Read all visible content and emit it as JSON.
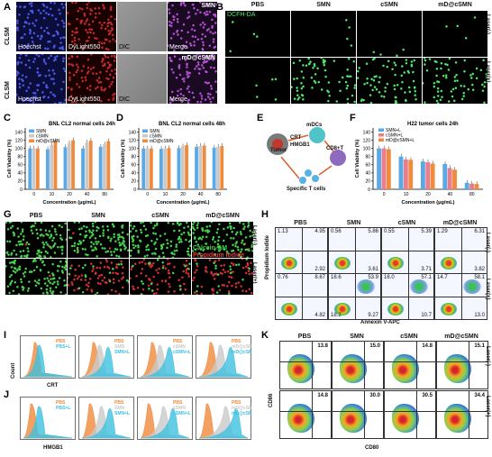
{
  "panels": {
    "A": {
      "label": "A",
      "row_labels": [
        "CLSM",
        "CLSM"
      ],
      "channels": [
        "Hoechst",
        "DyLight550",
        "DIC"
      ],
      "merge_labels": [
        "SMN",
        "mD@cSMN"
      ],
      "merge_caption": "Merge"
    },
    "B": {
      "label": "B",
      "columns": [
        "PBS",
        "SMN",
        "cSMN",
        "mD@cSMN"
      ],
      "stain": "DCFH-DA",
      "laser_rows": [
        "Laser(-)",
        "Laser(+)"
      ]
    },
    "C": {
      "label": "C",
      "title": "BNL CL2 normal cells 24h"
    },
    "D": {
      "label": "D",
      "title": "BNL CL2 normal cells 48h"
    },
    "E": {
      "label": "E",
      "labels": [
        "CRT",
        "HMGB1",
        "Tumor",
        "mDCs",
        "CD8+T",
        "Specific T cells"
      ]
    },
    "F": {
      "label": "F",
      "title": "H22 tumor cells 24h"
    },
    "G": {
      "label": "G",
      "columns": [
        "PBS",
        "SMN",
        "cSMN",
        "mD@cSMN"
      ],
      "laser_rows": [
        "Laser(-)",
        "Laser(+)"
      ],
      "legend": [
        "Calcein-AM",
        "Propidium Iodide"
      ]
    },
    "H": {
      "label": "H",
      "columns": [
        "PBS",
        "SMN",
        "cSMN",
        "mD@cSMN"
      ],
      "laser_rows": [
        "Laser(-)",
        "Laser(+)"
      ],
      "ylabel": "Propidium Iodide",
      "xlabel": "Annexin V-APC",
      "quadrants": [
        [
          {
            "tl": "1.13",
            "tr": "4.95",
            "bl": "",
            "br": "2.92"
          },
          {
            "tl": "0.56",
            "tr": "5.86",
            "bl": "",
            "br": "3.61"
          },
          {
            "tl": "0.55",
            "tr": "5.39",
            "bl": "",
            "br": "3.71"
          },
          {
            "tl": "1.29",
            "tr": "6.31",
            "bl": "",
            "br": "3.82"
          }
        ],
        [
          {
            "tl": "0.76",
            "tr": "8.67",
            "bl": "",
            "br": "4.82"
          },
          {
            "tl": "18.6",
            "tr": "53.9",
            "bl": "18.2",
            "br": "9.27"
          },
          {
            "tl": "16.0",
            "tr": "57.1",
            "bl": "",
            "br": "10.7"
          },
          {
            "tl": "14.7",
            "tr": "58.1",
            "bl": "",
            "br": "13.0"
          }
        ]
      ]
    },
    "I": {
      "label": "I",
      "ylabel": "Count",
      "xlabel": "CRT",
      "legends": [
        [
          "PBS",
          "PBS+L"
        ],
        [
          "PBS",
          "SMN",
          "SMN+L"
        ],
        [
          "PBS",
          "cSMN",
          "cSMN+L"
        ],
        [
          "PBS",
          "mD@cSMN",
          "mD@cSMN+L"
        ]
      ]
    },
    "J": {
      "label": "J",
      "xlabel": "HMGB1",
      "legends": [
        [
          "PBS",
          "PBS+L"
        ],
        [
          "PBS",
          "SMN",
          "SMN+L"
        ],
        [
          "PBS",
          "cSMN",
          "cSMN+L"
        ],
        [
          "PBS",
          "mD@cSMN",
          "mD@cSMN+L"
        ]
      ]
    },
    "K": {
      "label": "K",
      "columns": [
        "PBS",
        "SMN",
        "cSMN",
        "mD@cSMN"
      ],
      "laser_rows": [
        "Laser(-)",
        "Laser(+)"
      ],
      "ylabel": "CD86",
      "xlabel": "CD80",
      "values": [
        [
          "13.8",
          "15.0",
          "14.8",
          "15.1"
        ],
        [
          "14.8",
          "30.0",
          "30.5",
          "34.4"
        ]
      ]
    }
  },
  "chart_data": [
    {
      "type": "bar",
      "id": "C",
      "title": "BNL CL2 normal cells 24h",
      "xlabel": "Concentration (μg/mL)",
      "ylabel": "Cell Viability (%)",
      "ylim": [
        0,
        150
      ],
      "yticks": [
        0,
        20,
        40,
        60,
        80,
        100,
        120,
        140
      ],
      "categories": [
        "0",
        "10",
        "20",
        "40",
        "80"
      ],
      "series": [
        {
          "name": "SMN",
          "color": "#5aa9e6",
          "values": [
            100,
            98,
            103,
            100,
            104
          ]
        },
        {
          "name": "cSMN",
          "color": "#c9c9c9",
          "values": [
            100,
            108,
            113,
            115,
            110
          ]
        },
        {
          "name": "mD@cSMN",
          "color": "#f08a3c",
          "values": [
            100,
            118,
            120,
            119,
            118
          ]
        }
      ]
    },
    {
      "type": "bar",
      "id": "D",
      "title": "BNL CL2 normal cells 48h",
      "xlabel": "Concentration (μg/mL)",
      "ylabel": "Cell Viability (%)",
      "ylim": [
        0,
        150
      ],
      "yticks": [
        0,
        20,
        40,
        60,
        80,
        100,
        120,
        140
      ],
      "categories": [
        "0",
        "10",
        "20",
        "40",
        "80"
      ],
      "series": [
        {
          "name": "SMN",
          "color": "#5aa9e6",
          "values": [
            100,
            99,
            101,
            104,
            102
          ]
        },
        {
          "name": "cSMN",
          "color": "#c9c9c9",
          "values": [
            100,
            100,
            105,
            106,
            104
          ]
        },
        {
          "name": "mD@cSMN",
          "color": "#f08a3c",
          "values": [
            100,
            101,
            108,
            107,
            106
          ]
        }
      ]
    },
    {
      "type": "bar",
      "id": "F",
      "title": "H22 tumor cells 24h",
      "xlabel": "Concentration (μg/mL)",
      "ylabel": "Cell Viability (%)",
      "ylim": [
        0,
        150
      ],
      "yticks": [
        0,
        20,
        40,
        60,
        80,
        100,
        120,
        140
      ],
      "categories": [
        "0",
        "10",
        "20",
        "40",
        "80"
      ],
      "series": [
        {
          "name": "SMN+L",
          "color": "#5aa9e6",
          "values": [
            100,
            80,
            68,
            62,
            16
          ]
        },
        {
          "name": "cSMN+L",
          "color": "#e87d8d",
          "values": [
            100,
            73,
            66,
            52,
            14
          ]
        },
        {
          "name": "mD@cSMN+L",
          "color": "#f08a3c",
          "values": [
            98,
            72,
            63,
            48,
            13
          ]
        }
      ]
    }
  ]
}
